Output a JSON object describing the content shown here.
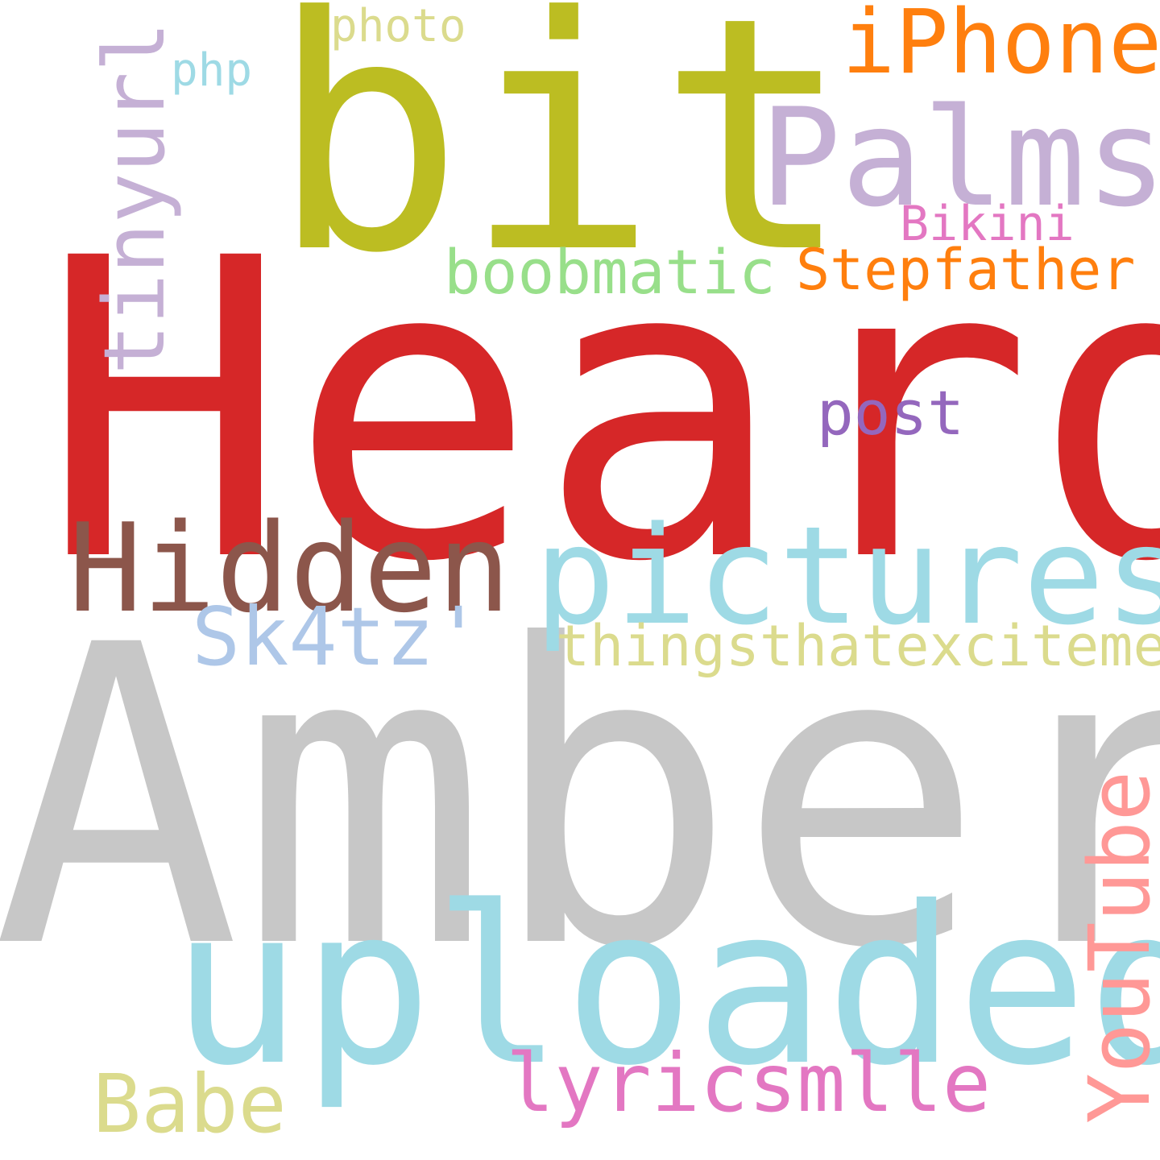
{
  "cloud": {
    "words": [
      {
        "key": "heard",
        "text": "Heard",
        "color": "#d62728"
      },
      {
        "key": "amber",
        "text": "Amber",
        "color": "#c7c7c7"
      },
      {
        "key": "bit",
        "text": "bit",
        "color": "#bcbd22"
      },
      {
        "key": "uploaded",
        "text": "uploaded",
        "color": "#9edae5"
      },
      {
        "key": "pictures",
        "text": "pictures",
        "color": "#9edae5"
      },
      {
        "key": "palms",
        "text": "Palms",
        "color": "#c5b0d5"
      },
      {
        "key": "hidden",
        "text": "Hidden",
        "color": "#8c564b"
      },
      {
        "key": "iphone",
        "text": "iPhone",
        "color": "#ff7f0e"
      },
      {
        "key": "tinyurl",
        "text": "tinyurl",
        "color": "#c5b0d5"
      },
      {
        "key": "youtube",
        "text": "YouTube",
        "color": "#ff9896"
      },
      {
        "key": "sk4tz",
        "text": "Sk4tz'",
        "color": "#aec7e8"
      },
      {
        "key": "babe",
        "text": "Babe",
        "color": "#dbdb8d"
      },
      {
        "key": "lyricsmlle",
        "text": "lyricsmlle",
        "color": "#e377c2"
      },
      {
        "key": "boobmatic",
        "text": "boobmatic",
        "color": "#98df8a"
      },
      {
        "key": "stepfather",
        "text": "Stepfather",
        "color": "#ff7f0e"
      },
      {
        "key": "thingsthatexciteme",
        "text": "thingsthatexciteme",
        "color": "#dbdb8d"
      },
      {
        "key": "post",
        "text": "post",
        "color": "#9467bd"
      },
      {
        "key": "bikini",
        "text": "Bikini",
        "color": "#e377c2"
      },
      {
        "key": "photo",
        "text": "photo",
        "color": "#dbdb8d"
      },
      {
        "key": "php",
        "text": "php",
        "color": "#9edae5"
      }
    ]
  }
}
